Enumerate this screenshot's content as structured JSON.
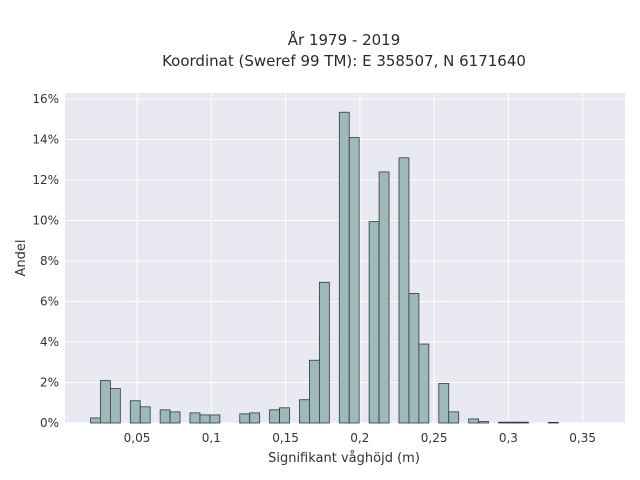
{
  "chart_data": {
    "type": "bar",
    "title": "År 1979 - 2019",
    "subtitle": "Koordinat (Sweref 99 TM): E 358507, N 6171640",
    "xlabel": "Signifikant våghöjd (m)",
    "ylabel": "Andel",
    "xlim": [
      0.0015,
      0.3785
    ],
    "ylim": [
      0,
      16.3
    ],
    "grid": true,
    "bin_width": 0.0067,
    "x_ticks": [
      {
        "value": 0.05,
        "label": "0,05"
      },
      {
        "value": 0.1,
        "label": "0,1"
      },
      {
        "value": 0.15,
        "label": "0,15"
      },
      {
        "value": 0.2,
        "label": "0,2"
      },
      {
        "value": 0.25,
        "label": "0,25"
      },
      {
        "value": 0.3,
        "label": "0,3"
      },
      {
        "value": 0.35,
        "label": "0,35"
      }
    ],
    "y_ticks": [
      {
        "value": 0,
        "label": "0%"
      },
      {
        "value": 2,
        "label": "2%"
      },
      {
        "value": 4,
        "label": "4%"
      },
      {
        "value": 6,
        "label": "6%"
      },
      {
        "value": 8,
        "label": "8%"
      },
      {
        "value": 10,
        "label": "10%"
      },
      {
        "value": 12,
        "label": "12%"
      },
      {
        "value": 14,
        "label": "14%"
      },
      {
        "value": 16,
        "label": "16%"
      }
    ],
    "bins": [
      {
        "x": 0.022,
        "value": 0.25
      },
      {
        "x": 0.0287,
        "value": 2.1
      },
      {
        "x": 0.0354,
        "value": 1.7
      },
      {
        "x": 0.0488,
        "value": 1.1
      },
      {
        "x": 0.0555,
        "value": 0.8
      },
      {
        "x": 0.0689,
        "value": 0.65
      },
      {
        "x": 0.0756,
        "value": 0.55
      },
      {
        "x": 0.089,
        "value": 0.5
      },
      {
        "x": 0.0957,
        "value": 0.4
      },
      {
        "x": 0.1024,
        "value": 0.4
      },
      {
        "x": 0.1225,
        "value": 0.45
      },
      {
        "x": 0.1292,
        "value": 0.5
      },
      {
        "x": 0.1426,
        "value": 0.65
      },
      {
        "x": 0.1493,
        "value": 0.75
      },
      {
        "x": 0.1627,
        "value": 1.15
      },
      {
        "x": 0.1694,
        "value": 3.1
      },
      {
        "x": 0.1761,
        "value": 6.95
      },
      {
        "x": 0.1895,
        "value": 15.35
      },
      {
        "x": 0.1962,
        "value": 14.1
      },
      {
        "x": 0.2096,
        "value": 9.95
      },
      {
        "x": 0.2163,
        "value": 12.4
      },
      {
        "x": 0.2297,
        "value": 13.1
      },
      {
        "x": 0.2364,
        "value": 6.4
      },
      {
        "x": 0.2431,
        "value": 3.9
      },
      {
        "x": 0.2565,
        "value": 1.95
      },
      {
        "x": 0.2632,
        "value": 0.55
      },
      {
        "x": 0.2766,
        "value": 0.2
      },
      {
        "x": 0.2833,
        "value": 0.07
      },
      {
        "x": 0.2967,
        "value": 0.04
      },
      {
        "x": 0.3034,
        "value": 0.04
      },
      {
        "x": 0.3101,
        "value": 0.04
      },
      {
        "x": 0.3302,
        "value": 0.03
      }
    ]
  }
}
